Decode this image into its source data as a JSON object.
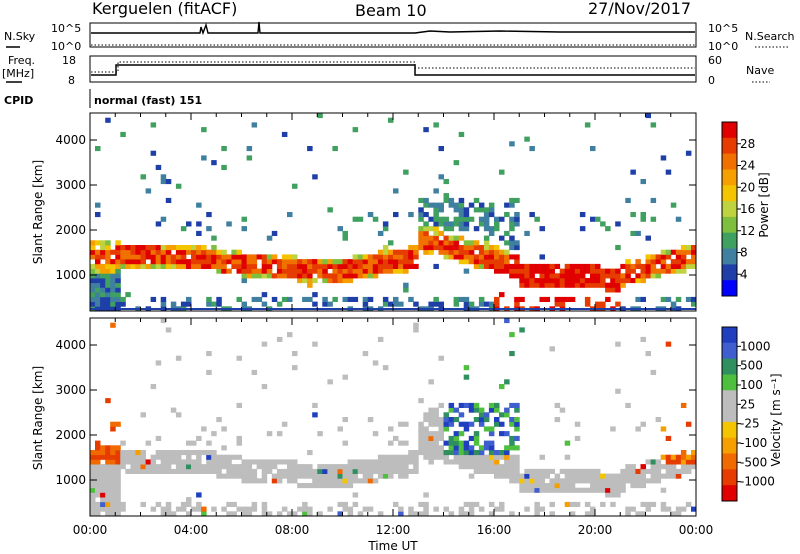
{
  "header": {
    "station": "Kerguelen (fitACF)",
    "beam": "Beam 10",
    "date": "27/Nov/2017"
  },
  "panels": {
    "nsky": {
      "left_label": "N.Sky",
      "right_label": "N.Search",
      "ticks_left": [
        "10^5",
        "10^0"
      ],
      "ticks_right": [
        "10^5",
        "10^0"
      ]
    },
    "freq": {
      "left_label_1": "Freq.",
      "left_label_2": "[MHz]",
      "ticks_left": [
        "18",
        "8"
      ],
      "right_label": "Nave",
      "ticks_right": [
        "60",
        "0"
      ]
    },
    "cpid": {
      "label": "CPID",
      "text": "normal (fast) 151"
    }
  },
  "chart_data": [
    {
      "type": "heatmap",
      "name": "power-panel",
      "ylabel": "Slant Range [km]",
      "xlabel": "",
      "y_ticks": [
        "1000",
        "2000",
        "3000",
        "4000"
      ],
      "ylim": [
        200,
        4600
      ],
      "colorbar_label": "Power [dB]",
      "colorbar_ticks": [
        "4",
        "8",
        "12",
        "16",
        "20",
        "24",
        "28"
      ],
      "colors": [
        "#0000ff",
        "#1f3fa8",
        "#3f7f9f",
        "#3fa05f",
        "#7fbf3f",
        "#bfd23f",
        "#f5c400",
        "#f59f00",
        "#f07000",
        "#e63c00",
        "#e00000"
      ]
    },
    {
      "type": "heatmap",
      "name": "velocity-panel",
      "ylabel": "Slant Range [km]",
      "xlabel": "Time UT",
      "x_ticks": [
        "00:00",
        "04:00",
        "08:00",
        "12:00",
        "16:00",
        "20:00",
        "00:00"
      ],
      "y_ticks": [
        "1000",
        "2000",
        "3000",
        "4000"
      ],
      "ylim": [
        200,
        4600
      ],
      "colorbar_label": "Velocity [m s⁻¹]",
      "colorbar_ticks": [
        "1000",
        "500",
        "100",
        "25",
        "-25",
        "-100",
        "-500",
        "-1000"
      ],
      "colors": [
        "#1f3fbf",
        "#3f5fcf",
        "#2f8f5f",
        "#4fbf3f",
        "#bdbdbd",
        "#bdbdbd",
        "#f5c400",
        "#f59f00",
        "#f06a00",
        "#e63c00",
        "#e00000"
      ]
    }
  ]
}
